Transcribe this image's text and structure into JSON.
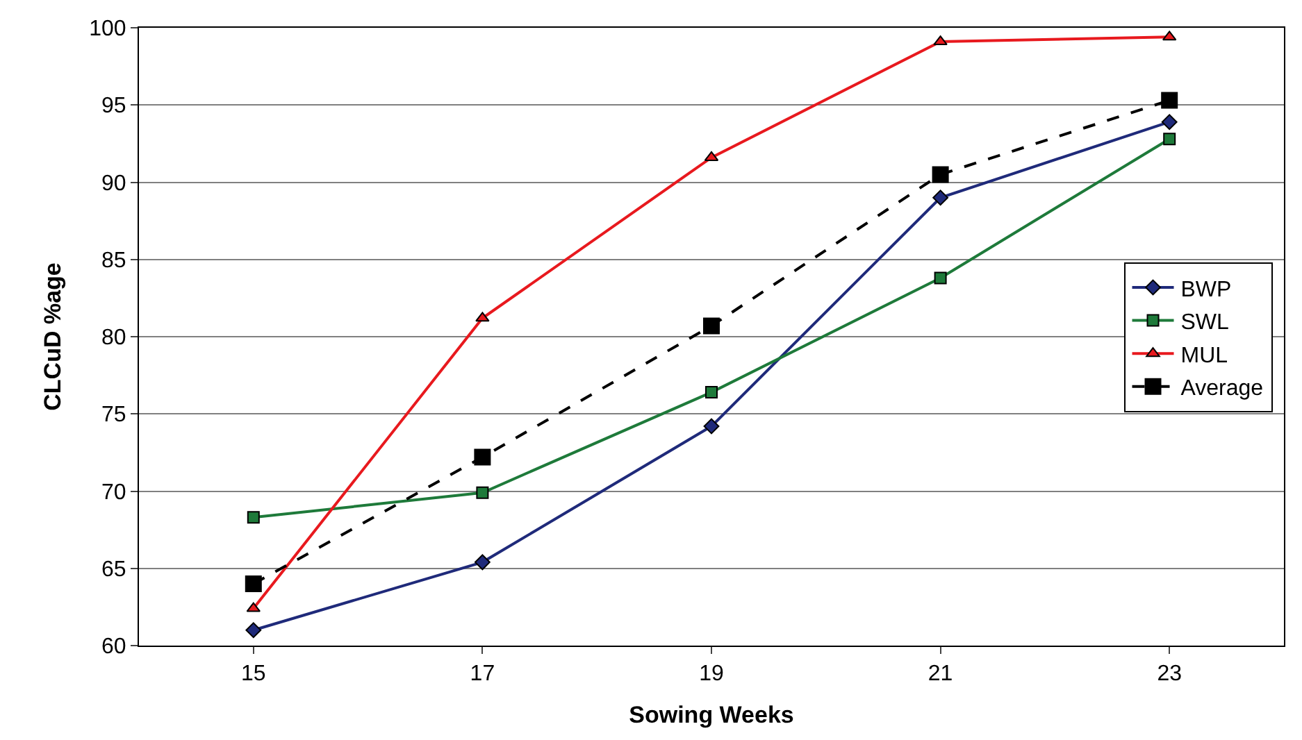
{
  "chart_data": {
    "type": "line",
    "xlabel": "Sowing Weeks",
    "ylabel": "CLCuD %age",
    "categories": [
      "15",
      "17",
      "19",
      "21",
      "23"
    ],
    "series": [
      {
        "name": "BWP",
        "color": "#1f2a7a",
        "values": [
          61.0,
          65.4,
          74.2,
          89.0,
          93.9
        ],
        "marker": "diamond",
        "line_style": "solid"
      },
      {
        "name": "SWL",
        "color": "#1e7a3a",
        "values": [
          68.3,
          69.9,
          76.4,
          83.8,
          92.8
        ],
        "marker": "square",
        "line_style": "solid"
      },
      {
        "name": "MUL",
        "color": "#e8191e",
        "values": [
          62.4,
          81.2,
          91.6,
          99.1,
          99.4
        ],
        "marker": "triangle",
        "line_style": "solid"
      },
      {
        "name": "Average",
        "color": "#000000",
        "values": [
          64.0,
          72.2,
          80.7,
          90.5,
          95.3
        ],
        "marker": "square",
        "line_style": "dashed"
      }
    ],
    "ylim": [
      60,
      100
    ],
    "yticks": [
      60,
      65,
      70,
      75,
      80,
      85,
      90,
      95,
      100
    ],
    "grid": "y",
    "legend": "right"
  }
}
